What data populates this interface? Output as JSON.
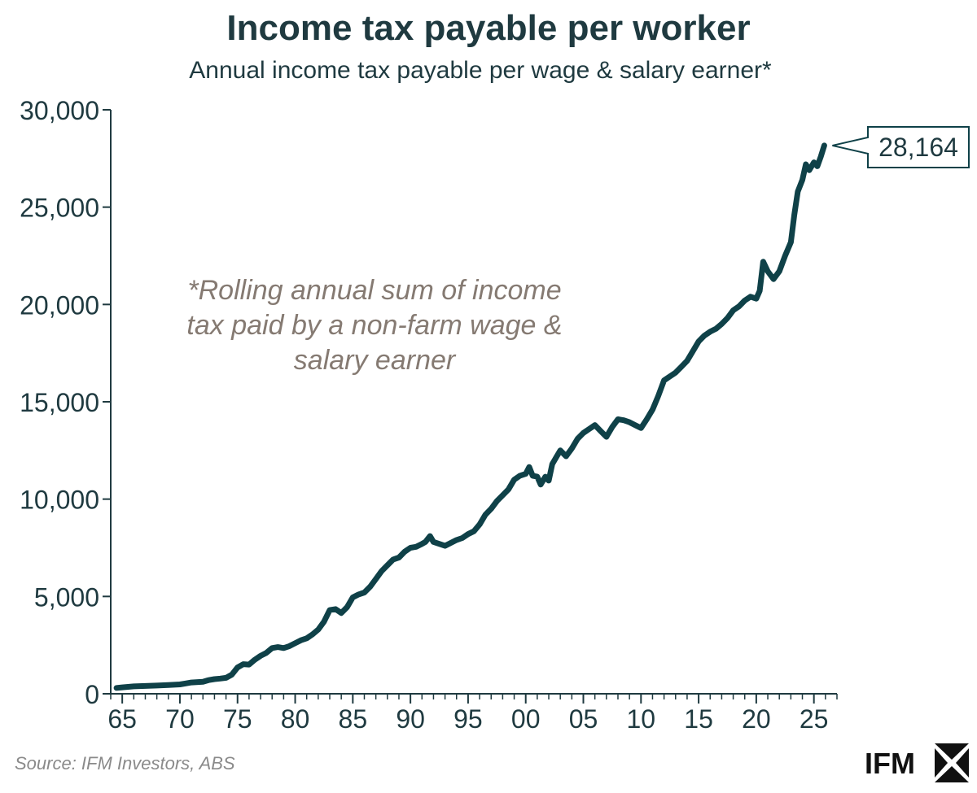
{
  "chart_data": {
    "type": "line",
    "title": "Income tax payable per worker",
    "subtitle": "Annual income tax payable per wage & salary earner*",
    "annotation": "*Rolling annual sum of income tax paid by a non-farm wage & salary earner",
    "annotation_lines": [
      "*Rolling annual sum of income",
      "tax paid by a non-farm wage &",
      "salary earner"
    ],
    "last_value_label": "28,164",
    "xlabel": "",
    "ylabel": "",
    "ylim": [
      0,
      30000
    ],
    "xlim": [
      1964,
      2027
    ],
    "y_ticks": [
      0,
      5000,
      10000,
      15000,
      20000,
      25000,
      30000
    ],
    "y_tick_labels": [
      "0",
      "5,000",
      "10,000",
      "15,000",
      "20,000",
      "25,000",
      "30,000"
    ],
    "x_ticks": [
      1965,
      1970,
      1975,
      1980,
      1985,
      1990,
      1995,
      2000,
      2005,
      2010,
      2015,
      2020,
      2025
    ],
    "x_tick_labels": [
      "65",
      "70",
      "75",
      "80",
      "85",
      "90",
      "95",
      "00",
      "05",
      "10",
      "15",
      "20",
      "25"
    ],
    "line_color": "#0f4148",
    "series": [
      {
        "name": "Income tax payable per wage & salary earner",
        "x": [
          1964.5,
          1965.0,
          1966.0,
          1967.0,
          1968.0,
          1969.0,
          1970.0,
          1970.5,
          1971.0,
          1972.0,
          1972.5,
          1973.0,
          1973.5,
          1974.0,
          1974.5,
          1975.0,
          1975.5,
          1976.0,
          1976.5,
          1977.0,
          1977.5,
          1978.0,
          1978.5,
          1979.0,
          1979.5,
          1980.0,
          1980.5,
          1981.0,
          1981.5,
          1982.0,
          1982.5,
          1983.0,
          1983.5,
          1984.0,
          1984.5,
          1985.0,
          1985.5,
          1986.0,
          1986.5,
          1987.0,
          1987.5,
          1988.0,
          1988.5,
          1989.0,
          1989.5,
          1990.0,
          1990.5,
          1991.0,
          1991.3,
          1991.7,
          1992.0,
          1992.5,
          1993.0,
          1993.5,
          1994.0,
          1994.5,
          1995.0,
          1995.5,
          1996.0,
          1996.5,
          1997.0,
          1997.5,
          1998.0,
          1998.5,
          1999.0,
          1999.5,
          2000.0,
          2000.3,
          2000.6,
          2001.0,
          2001.3,
          2001.7,
          2002.0,
          2002.3,
          2002.7,
          2003.0,
          2003.5,
          2004.0,
          2004.5,
          2005.0,
          2005.5,
          2006.0,
          2006.5,
          2007.0,
          2007.5,
          2008.0,
          2008.5,
          2009.0,
          2009.5,
          2010.0,
          2010.5,
          2011.0,
          2011.5,
          2012.0,
          2012.5,
          2013.0,
          2013.5,
          2014.0,
          2014.5,
          2015.0,
          2015.5,
          2016.0,
          2016.5,
          2017.0,
          2017.5,
          2018.0,
          2018.5,
          2019.0,
          2019.5,
          2020.0,
          2020.3,
          2020.6,
          2021.0,
          2021.5,
          2022.0,
          2022.5,
          2023.0,
          2023.3,
          2023.6,
          2024.0,
          2024.3,
          2024.6,
          2025.0,
          2025.3,
          2025.6,
          2025.9
        ],
        "values": [
          300,
          330,
          380,
          400,
          420,
          450,
          480,
          530,
          580,
          620,
          700,
          750,
          780,
          820,
          980,
          1350,
          1520,
          1500,
          1750,
          1950,
          2100,
          2350,
          2400,
          2350,
          2450,
          2600,
          2750,
          2850,
          3050,
          3300,
          3700,
          4300,
          4350,
          4150,
          4450,
          4950,
          5100,
          5200,
          5500,
          5900,
          6300,
          6600,
          6900,
          7000,
          7300,
          7500,
          7550,
          7700,
          7800,
          8100,
          7800,
          7700,
          7600,
          7750,
          7900,
          8000,
          8200,
          8350,
          8700,
          9200,
          9500,
          9900,
          10200,
          10500,
          11000,
          11200,
          11300,
          11650,
          11200,
          11150,
          10750,
          11150,
          10950,
          11800,
          12200,
          12500,
          12200,
          12600,
          13100,
          13400,
          13600,
          13800,
          13500,
          13200,
          13700,
          14100,
          14050,
          13950,
          13800,
          13650,
          14100,
          14600,
          15300,
          16100,
          16300,
          16500,
          16800,
          17100,
          17600,
          18100,
          18400,
          18600,
          18750,
          19000,
          19300,
          19700,
          19900,
          20200,
          20400,
          20300,
          20700,
          22200,
          21700,
          21300,
          21700,
          22500,
          23200,
          24600,
          25800,
          26400,
          27200,
          26900,
          27300,
          27100,
          27600,
          28164
        ]
      }
    ]
  },
  "footer": {
    "source": "Source: IFM Investors, ABS",
    "logo_text": "IFM"
  }
}
